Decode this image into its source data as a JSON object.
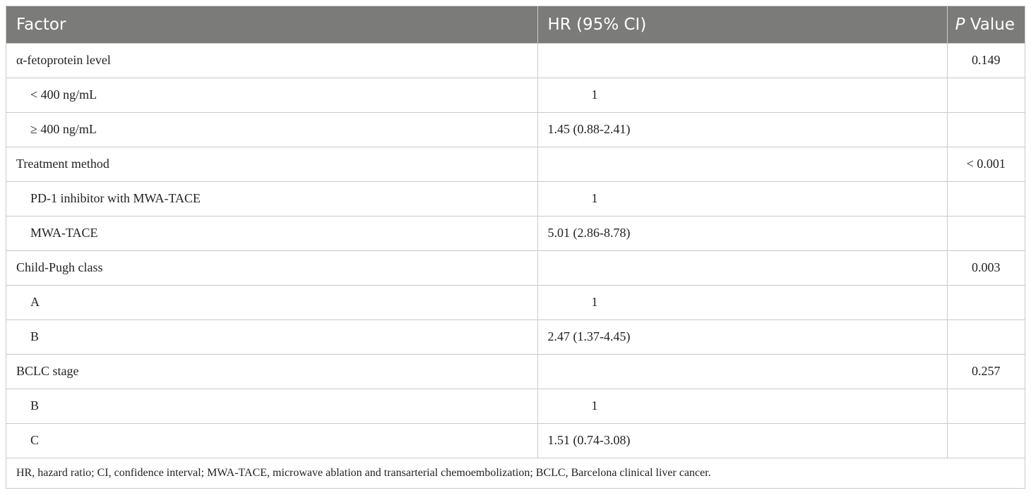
{
  "header": {
    "factor": "Factor",
    "hr": "HR (95% CI)",
    "p_italic": "P",
    "p_rest": " Value"
  },
  "rows": [
    {
      "factor": "α-fetoprotein level",
      "hr": "",
      "p": "0.149",
      "sub": false
    },
    {
      "factor": "< 400 ng/mL",
      "hr": "1",
      "p": "",
      "sub": true
    },
    {
      "factor": "≥ 400 ng/mL",
      "hr": "1.45 (0.88-2.41)",
      "p": "",
      "sub": true
    },
    {
      "factor": "Treatment method",
      "hr": "",
      "p": "< 0.001",
      "sub": false
    },
    {
      "factor": "PD-1 inhibitor with MWA-TACE",
      "hr": "1",
      "p": "",
      "sub": true
    },
    {
      "factor": "MWA-TACE",
      "hr": "5.01 (2.86-8.78)",
      "p": "",
      "sub": true
    },
    {
      "factor": "Child-Pugh class",
      "hr": "",
      "p": "0.003",
      "sub": false
    },
    {
      "factor": "A",
      "hr": "1",
      "p": "",
      "sub": true
    },
    {
      "factor": "B",
      "hr": "2.47 (1.37-4.45)",
      "p": "",
      "sub": true
    },
    {
      "factor": "BCLC stage",
      "hr": "",
      "p": "0.257",
      "sub": false
    },
    {
      "factor": "B",
      "hr": "1",
      "p": "",
      "sub": true
    },
    {
      "factor": "C",
      "hr": "1.51 (0.74-3.08)",
      "p": "",
      "sub": true
    }
  ],
  "footnote": "HR, hazard ratio; CI, confidence interval; MWA-TACE, microwave ablation and transarterial chemoembolization; BCLC, Barcelona clinical liver cancer."
}
